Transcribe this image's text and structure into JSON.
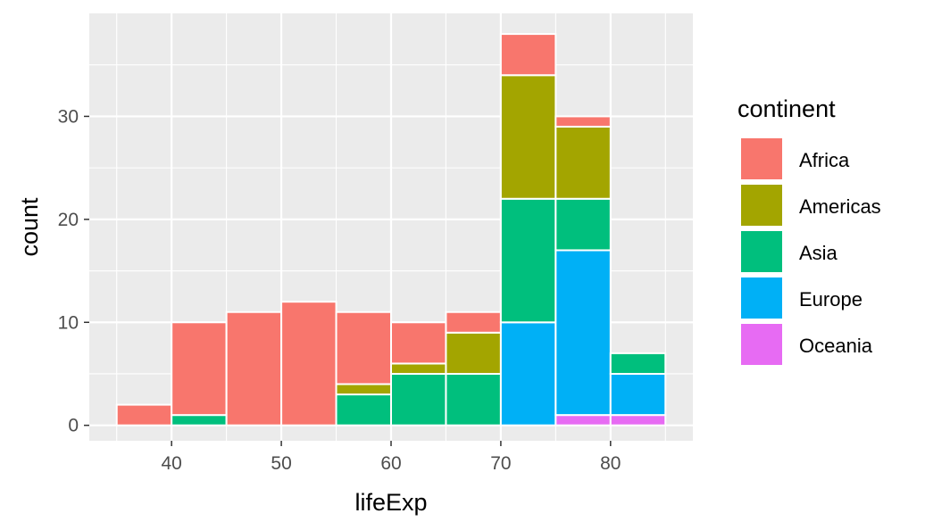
{
  "chart_data": {
    "type": "bar",
    "stacked": true,
    "title": "",
    "xlabel": "lifeExp",
    "ylabel": "count",
    "bin_width": 5,
    "bins": [
      35,
      40,
      45,
      50,
      55,
      60,
      65,
      70,
      75,
      80
    ],
    "xlim": [
      32.5,
      87.5
    ],
    "ylim": [
      -1.5,
      40
    ],
    "x_ticks": [
      40,
      50,
      60,
      70,
      80
    ],
    "y_ticks": [
      0,
      10,
      20,
      30
    ],
    "grid": true,
    "legend": {
      "title": "continent",
      "position": "right"
    },
    "series": [
      {
        "name": "Africa",
        "color": "#F8766D",
        "values": [
          2,
          9,
          11,
          12,
          7,
          4,
          2,
          4,
          1,
          0
        ]
      },
      {
        "name": "Americas",
        "color": "#A3A500",
        "values": [
          0,
          0,
          0,
          0,
          1,
          1,
          4,
          12,
          7,
          0
        ]
      },
      {
        "name": "Asia",
        "color": "#00BF7D",
        "values": [
          0,
          1,
          0,
          0,
          3,
          5,
          5,
          12,
          5,
          2
        ]
      },
      {
        "name": "Europe",
        "color": "#00B0F6",
        "values": [
          0,
          0,
          0,
          0,
          0,
          0,
          0,
          10,
          16,
          4
        ]
      },
      {
        "name": "Oceania",
        "color": "#E76BF3",
        "values": [
          0,
          0,
          0,
          0,
          0,
          0,
          0,
          0,
          1,
          1
        ]
      }
    ]
  }
}
